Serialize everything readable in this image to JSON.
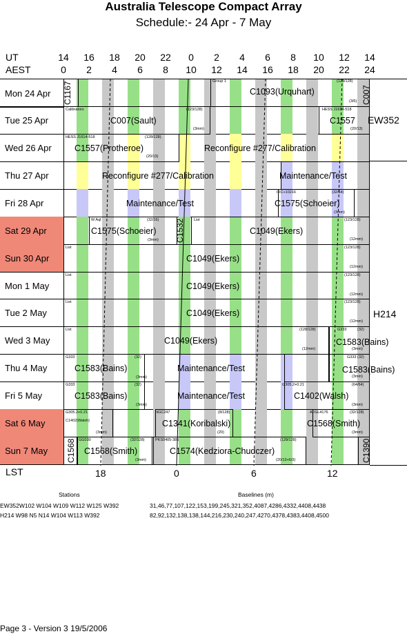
{
  "header": {
    "title": "Australia Telescope Compact Array",
    "subtitle": "Schedule:- 24 Apr - 7  May"
  },
  "axes": {
    "ut_label": "UT",
    "aest_label": "AEST",
    "lst_label": "LST",
    "ut_ticks": [
      "14",
      "16",
      "18",
      "20",
      "22",
      "0",
      "2",
      "4",
      "6",
      "8",
      "10",
      "12",
      "14"
    ],
    "aest_ticks": [
      "0",
      "2",
      "4",
      "6",
      "8",
      "10",
      "12",
      "14",
      "16",
      "18",
      "20",
      "22",
      "24"
    ],
    "lst_ticks": [
      "18",
      "0",
      "6",
      "12"
    ]
  },
  "days": [
    {
      "label": "Mon  24 Apr",
      "weekend": false
    },
    {
      "label": "Tue  25 Apr",
      "weekend": false
    },
    {
      "label": "Wed  26 Apr",
      "weekend": false
    },
    {
      "label": "Thu  27 Apr",
      "weekend": false
    },
    {
      "label": "Fri   28 Apr",
      "weekend": false
    },
    {
      "label": "Sat   29 Apr",
      "weekend": true
    },
    {
      "label": "Sun   30 Apr",
      "weekend": true
    },
    {
      "label": "Mon  1  May",
      "weekend": false
    },
    {
      "label": "Tue  2  May",
      "weekend": false
    },
    {
      "label": "Wed  3  May",
      "weekend": false
    },
    {
      "label": "Thu  4  May",
      "weekend": false
    },
    {
      "label": "Fri   5  May",
      "weekend": false
    },
    {
      "label": "Sat   6  May",
      "weekend": true
    },
    {
      "label": "Sun   7  May",
      "weekend": true
    }
  ],
  "configs": [
    "EW352",
    "H214"
  ],
  "projects": {
    "c1167": "C1167",
    "group1": "Group 1",
    "c1093": "C1093(Urquhart)",
    "p123_128a": "(123/128)",
    "p3_6": "(3/6)",
    "c007v": "C007",
    "calibrators": "Calibrators",
    "c007s": "C007(Sault)",
    "p123_128b": "(123/128)",
    "mm3a": "(3mm)",
    "hess_tue": "HESS J1614-518",
    "c1557": "C1557",
    "p20_13a": "(20/13)",
    "hess_wed": "HESS J1614-518",
    "c1557p": "C1557(Protheroe)",
    "p128_128a": "(128/128)",
    "p20_13b": "(20/13)",
    "reconf1": "Reconfigure #277/Calibration",
    "reconf2": "Reconfigure #277/Calibration",
    "maint1": "Maintenance/Test",
    "maint2": "Maintenance/Test",
    "irc": "IRC+10216",
    "p32_64": "(32/64)",
    "c1575a": "C1575(Schoeier)",
    "mm3b": "(3mm)",
    "wagl": "W Aql",
    "p32_16": "(32/16)",
    "c1575b": "C1575(Schoeier)",
    "mm3c": "(3mm)",
    "c1532": "C1532",
    "list1": "List",
    "c1049a": "C1049(Ekers)",
    "p123_128c": "(123/128)",
    "mm12a": "(12mm)",
    "list2": "List",
    "c1049b": "C1049(Ekers)",
    "p123_128d": "(123/128)",
    "mm12b": "(12mm)",
    "list3": "List",
    "c1049c": "C1049(Ekers)",
    "p123_128e": "(123/128)",
    "mm12c": "(12mm)",
    "list4": "List",
    "c1049d": "C1049(Ekers)",
    "p123_128f": "(123/128)",
    "mm12d": "(12mm)",
    "list5": "List",
    "c1049e": "C1049(Ekers)",
    "p128_128b": "(128/128)",
    "mm12e": "(12mm)",
    "g333a": "G333",
    "p32a": "(32)",
    "c1583a": "C1583(Bains)",
    "mm3d": "(3mm)",
    "g333b": "G333",
    "p32b": "(32)",
    "c1583b": "C1583(Bains)",
    "mm3e": "(3mm)",
    "maint3": "Maintenance/Test",
    "g333c": "G333",
    "p32c": "(32)",
    "c1583c": "C1583(Bains)",
    "mm3f": "(3mm)",
    "g333d": "G333",
    "p32d": "(32)",
    "c1583d": "C1583(Bains)",
    "mm3g": "(3mm)",
    "maint4": "Maintenance/Test",
    "g305a": "G305.2+0.21",
    "p64_64": "(64/64)",
    "c1402a": "C1402(Walsh)",
    "mm3h": "(3mm)",
    "g305b": "G305.2+0.21",
    "c1402b": "C1402(Walsh)",
    "mm3i": "(3mm)",
    "ngc247": "NGC247",
    "p8_128": "(8/128)",
    "c1341": "C1341(Koribalski)",
    "p20a": "(20)",
    "afgl": "AFGL4176",
    "p32_128a": "(32/128)",
    "c1568a": "C1568(Smith)",
    "mm3j": "(3mm)",
    "c1568v": "C1568",
    "gg": "GG030",
    "p32_128b": "(32/128)",
    "c1568b": "C1568(Smith)",
    "mm3k": "(3mm)",
    "pks": "PKS0405-385",
    "c1574": "C1574(Kedziora-Chudczer)",
    "p128_128c": "(128/128)",
    "p20_13_6_3": "(20/13+6/3)",
    "c1390": "C1390"
  },
  "footer": {
    "stations_header": "Stations",
    "baselines_header": "Baselines (m)",
    "ew352_stations": "EW352W102 W104 W109 W112 W125 W392",
    "ew352_baselines": "31,46,77,107,122,153,199,245,321,352,4087,4286,4332,4408,4438",
    "h214_stations": "H214   W98 N5 N14 W104 W113 W392",
    "h214_baselines": "82,92,132,138,138,144,216,230,240,247,4270,4378,4383,4408,4500",
    "page_info": "Page 3 - Version 3  19/5/2006"
  },
  "colors": {
    "green": "#98e088",
    "grey": "#c8c8c8",
    "yellow": "#ffff98",
    "lavender": "#c8c8f8",
    "weekend": "#f08878"
  }
}
